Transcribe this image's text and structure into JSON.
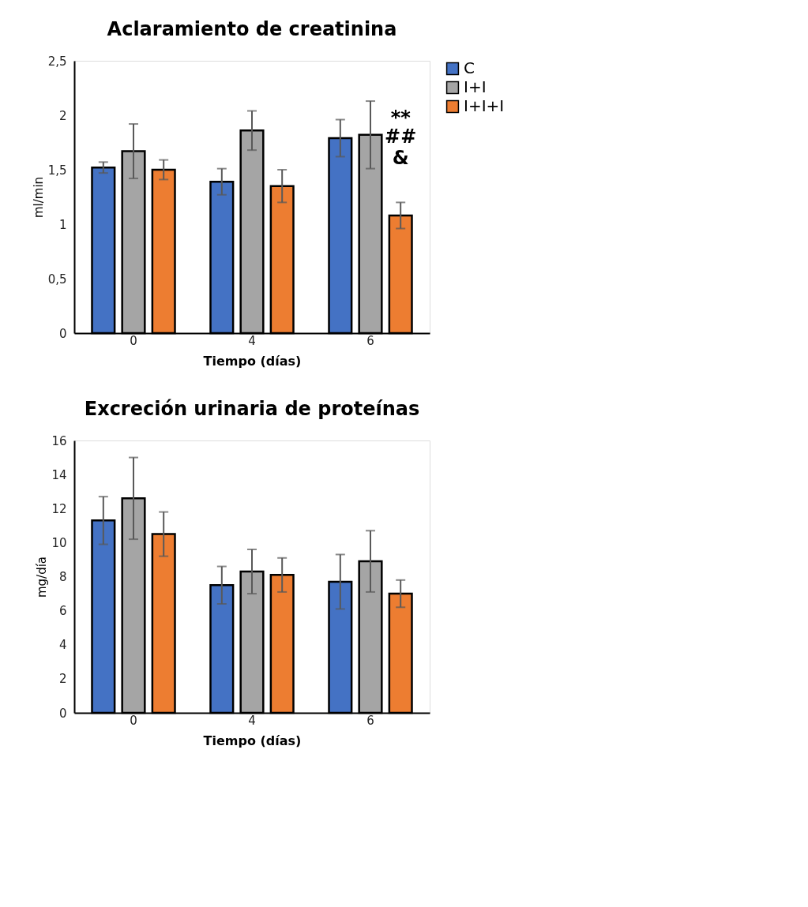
{
  "chart_data": [
    {
      "type": "bar",
      "title": "Aclaramiento de creatinina",
      "xlabel": "Tiempo (días)",
      "ylabel": "ml/min",
      "categories": [
        "0",
        "4",
        "6"
      ],
      "series": [
        {
          "name": "C",
          "color": "#4472c4",
          "values": [
            1.52,
            1.39,
            1.79
          ],
          "errors": [
            0.05,
            0.12,
            0.17
          ]
        },
        {
          "name": "I+I",
          "color": "#a5a5a5",
          "values": [
            1.67,
            1.86,
            1.82
          ],
          "errors": [
            0.25,
            0.18,
            0.31
          ]
        },
        {
          "name": "I+I+I",
          "color": "#ed7d31",
          "values": [
            1.5,
            1.35,
            1.08
          ],
          "errors": [
            0.09,
            0.15,
            0.12
          ]
        }
      ],
      "ylim": [
        0,
        2.5
      ],
      "yticks": [
        0,
        {
          "value": 0.5,
          "label": "0,5"
        },
        1,
        {
          "value": 1.5,
          "label": "1,5"
        },
        2,
        {
          "value": 2.5,
          "label": "2,5"
        }
      ],
      "grid": false,
      "legend": "right",
      "annotations": [
        {
          "text": "**",
          "x": "6",
          "y": 1.97
        },
        {
          "text": "##",
          "x": "6",
          "y": 1.8
        },
        {
          "text": "&",
          "x": "6",
          "y": 1.6
        }
      ]
    },
    {
      "type": "bar",
      "title": "Excreción urinaria de proteínas",
      "xlabel": "Tiempo (días)",
      "ylabel": "mg/día",
      "categories": [
        "0",
        "4",
        "6"
      ],
      "series": [
        {
          "name": "C",
          "color": "#4472c4",
          "values": [
            11.3,
            7.5,
            7.7
          ],
          "errors": [
            1.4,
            1.1,
            1.6
          ]
        },
        {
          "name": "I+I",
          "color": "#a5a5a5",
          "values": [
            12.6,
            8.3,
            8.9
          ],
          "errors": [
            2.4,
            1.3,
            1.8
          ]
        },
        {
          "name": "I+I+I",
          "color": "#ed7d31",
          "values": [
            10.5,
            8.1,
            7.0
          ],
          "errors": [
            1.3,
            1.0,
            0.8
          ]
        }
      ],
      "ylim": [
        0,
        16
      ],
      "yticks": [
        0,
        2,
        4,
        6,
        8,
        10,
        12,
        14,
        16
      ],
      "grid": false,
      "legend": "right"
    }
  ]
}
